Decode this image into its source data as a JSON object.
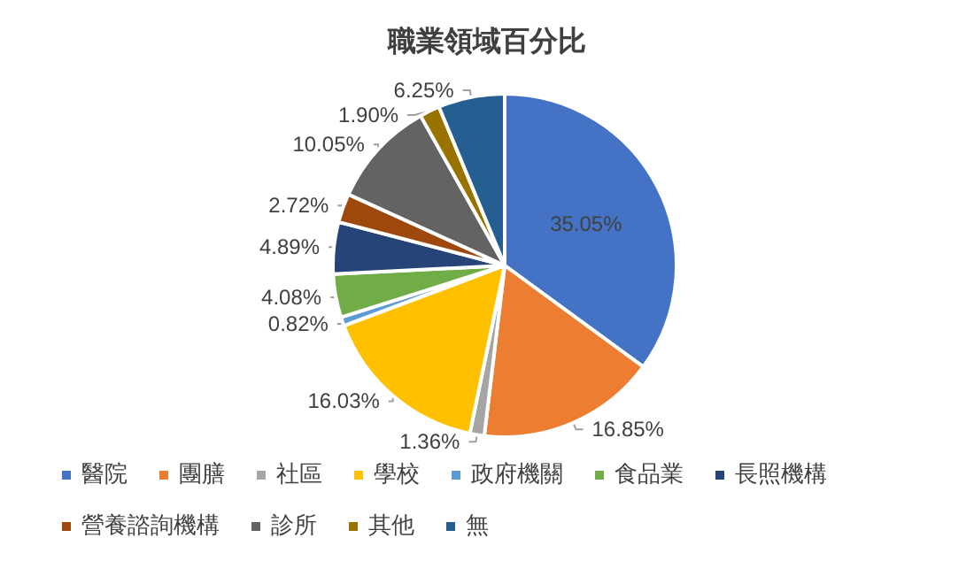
{
  "chart_data": {
    "type": "pie",
    "title": "職業領域百分比",
    "categories": [
      "醫院",
      "團膳",
      "社區",
      "學校",
      "政府機關",
      "食品業",
      "長照機構",
      "營養諮詢機構",
      "診所",
      "其他",
      "無"
    ],
    "values": [
      35.05,
      16.85,
      1.36,
      16.03,
      0.82,
      4.08,
      4.89,
      2.72,
      10.05,
      1.9,
      6.25
    ],
    "value_labels": [
      "35.05%",
      "16.85%",
      "1.36%",
      "16.03%",
      "0.82%",
      "4.08%",
      "4.89%",
      "2.72%",
      "10.05%",
      "1.90%",
      "6.25%"
    ],
    "colors": [
      "#4472c4",
      "#ed7d31",
      "#a5a5a5",
      "#ffc000",
      "#5b9bd5",
      "#70ad47",
      "#264478",
      "#9e480e",
      "#636363",
      "#997300",
      "#255e91"
    ],
    "legend": "bottom"
  }
}
